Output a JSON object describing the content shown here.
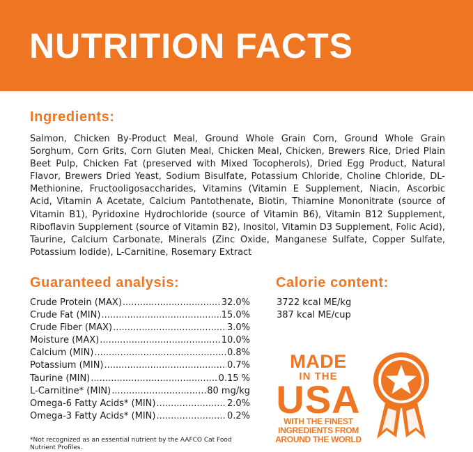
{
  "banner": {
    "title": "NUTRITION FACTS"
  },
  "ingredients": {
    "heading": "Ingredients:",
    "text": "Salmon, Chicken By-Product Meal, Ground Whole Grain Corn, Ground Whole Grain Sorghum, Corn Grits, Corn Gluten Meal, Chicken Meal, Chicken, Brewers Rice, Dried Plain Beet Pulp, Chicken Fat (preserved with Mixed Tocopherols), Dried Egg Product, Natural Flavor, Brewers Dried Yeast, Sodium Bisulfate, Potassium Chloride, Choline Chloride, DL-Methionine, Fructooligosaccharides, Vitamins (Vitamin E Supplement, Niacin, Ascorbic Acid, Vitamin A Acetate, Calcium Pantothenate, Biotin, Thiamine Mononitrate (source of Vitamin B1), Pyridoxine Hydrochloride (source of Vitamin B6), Vitamin B12 Supplement, Riboflavin Supplement (source of Vitamin B2), Inositol, Vitamin D3 Supplement, Folic Acid), Taurine, Calcium Carbonate, Minerals (Zinc Oxide, Manganese Sulfate, Copper Sulfate, Potassium Iodide), L-Carnitine, Rosemary Extract"
  },
  "analysis": {
    "heading": "Guaranteed analysis:",
    "rows": [
      {
        "label": "Crude Protein (MAX)",
        "value": "32.0%"
      },
      {
        "label": "Crude Fat (MIN)",
        "value": "15.0%"
      },
      {
        "label": "Crude Fiber (MAX)",
        "value": "3.0%"
      },
      {
        "label": "Moisture (MAX)",
        "value": "10.0%"
      },
      {
        "label": "Calcium (MIN)",
        "value": "0.8%"
      },
      {
        "label": "Potassium (MIN)",
        "value": "0.7%"
      },
      {
        "label": "Taurine (MIN)",
        "value": "0.15 %"
      },
      {
        "label": "L-Carnitine* (MIN)",
        "value": "80 mg/kg"
      },
      {
        "label": "Omega-6 Fatty Acids* (MIN)",
        "value": "2.0%"
      },
      {
        "label": "Omega-3 Fatty Acids* (MIN)",
        "value": "0.2%"
      }
    ]
  },
  "calorie": {
    "heading": "Calorie content:",
    "lines": [
      "3722 kcal ME/kg",
      "387 kcal ME/cup"
    ]
  },
  "footnote": "*Not recognized as an essential nutrient by the AAFCO Cat Food Nutrient Profiles.",
  "made_in_usa": {
    "line1": "MADE",
    "line2": "IN THE",
    "line3": "USA",
    "sub1": "WITH THE FINEST",
    "sub2": "INGREDIENTS FROM",
    "sub3": "AROUND THE WORLD"
  },
  "colors": {
    "accent": "#ee7623",
    "banner_text": "#ffffff",
    "body_text": "#1a1a1a"
  },
  "icons": {
    "badge": "star-medal-icon"
  }
}
